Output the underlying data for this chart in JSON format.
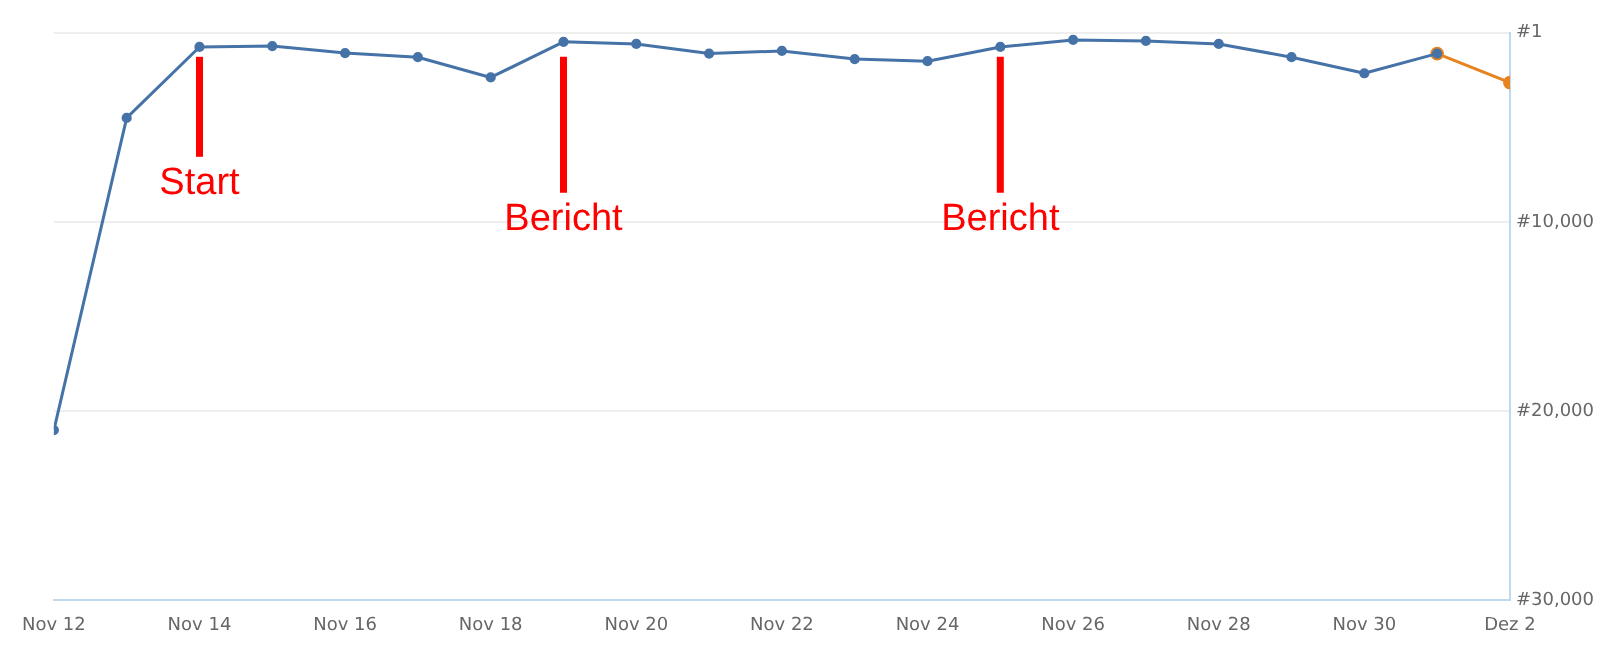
{
  "chart_data": {
    "type": "line",
    "series": [
      {
        "color": "#4572a7",
        "x": [
          "--11-12",
          "--11-13",
          "--11-14",
          "--11-15",
          "--11-16",
          "--11-17",
          "--11-18",
          "--11-19",
          "--11-20",
          "--11-21",
          "--11-22",
          "--11-23",
          "--11-24",
          "--11-25",
          "--11-26",
          "--11-27",
          "--11-28",
          "--11-29",
          "--11-30",
          "--12-01"
        ],
        "values": [
          21000,
          4500,
          750,
          700,
          1070,
          1290,
          2360,
          480,
          590,
          1100,
          960,
          1390,
          1500,
          750,
          380,
          430,
          590,
          1290,
          2140,
          1100
        ]
      },
      {
        "color": "#e8841f",
        "x": [
          "--12-01",
          "--12-02"
        ],
        "values": [
          1100,
          2630
        ]
      }
    ],
    "xlim": [
      "--11-12",
      "--12-02"
    ],
    "xticks": [
      {
        "value": "--11-12",
        "label": "Nov 12"
      },
      {
        "value": "--11-14",
        "label": "Nov 14"
      },
      {
        "value": "--11-16",
        "label": "Nov 16"
      },
      {
        "value": "--11-18",
        "label": "Nov 18"
      },
      {
        "value": "--11-20",
        "label": "Nov 20"
      },
      {
        "value": "--11-22",
        "label": "Nov 22"
      },
      {
        "value": "--11-24",
        "label": "Nov 24"
      },
      {
        "value": "--11-26",
        "label": "Nov 26"
      },
      {
        "value": "--11-28",
        "label": "Nov 28"
      },
      {
        "value": "--11-30",
        "label": "Nov 30"
      },
      {
        "value": "--12-02",
        "label": "Dez 2"
      }
    ],
    "ylim": [
      30000,
      1
    ],
    "yticks": [
      {
        "value": 1,
        "label": "#1"
      },
      {
        "value": 10000,
        "label": "#10,000"
      },
      {
        "value": 20000,
        "label": "#20,000"
      },
      {
        "value": 30000,
        "label": "#30,000"
      }
    ],
    "grid": "y",
    "legend": false,
    "marker": "circle",
    "line_style": "solid",
    "ref_lines": [
      {
        "axis": "x",
        "value": "--11-14",
        "label": "Start",
        "color": "#ff0000"
      },
      {
        "axis": "x",
        "value": "--11-19",
        "label": "Bericht",
        "color": "#ff0000"
      },
      {
        "axis": "x",
        "value": "--11-25",
        "label": "Bericht",
        "color": "#ff0000"
      }
    ]
  }
}
